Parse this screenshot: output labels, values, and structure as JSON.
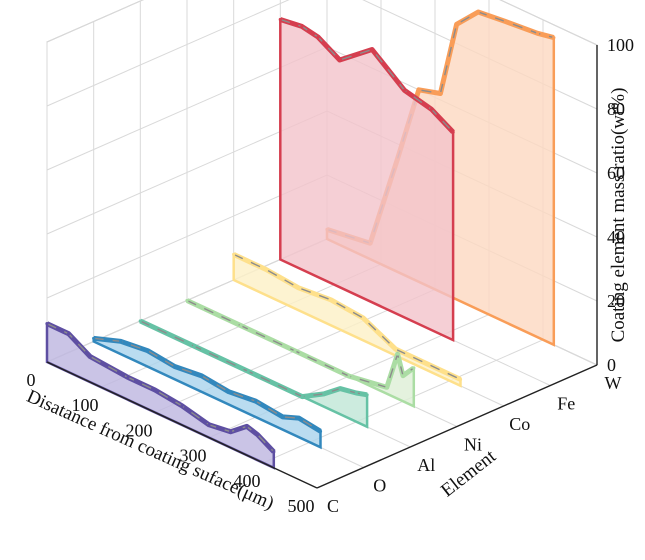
{
  "chart_data": {
    "type": "3d-area",
    "title": "",
    "xlabel": "Disatance from coating suface(μm)",
    "ylabel": "Element",
    "zlabel": "Coating element mass ratio(wt%)",
    "xlim": [
      0,
      500
    ],
    "zlim": [
      0,
      100
    ],
    "x_ticks": [
      "0",
      "100",
      "200",
      "300",
      "400",
      "500"
    ],
    "z_ticks": [
      "0",
      "20",
      "40",
      "60",
      "80",
      "100"
    ],
    "categories": [
      "C",
      "O",
      "Al",
      "Ni",
      "Co",
      "Fe",
      "W"
    ],
    "grid": true,
    "series": [
      {
        "category": "C",
        "color": "#5E4FA2",
        "fill": "#BDB5E0",
        "x": [
          0,
          40,
          80,
          150,
          200,
          250,
          300,
          340,
          370,
          390,
          420
        ],
        "y": [
          12,
          12,
          8,
          7,
          7,
          6,
          4,
          5,
          9,
          8,
          5
        ]
      },
      {
        "category": "O",
        "color": "#3288BD",
        "fill": "#A9D3EC",
        "x": [
          0,
          50,
          100,
          150,
          200,
          250,
          300,
          350,
          380,
          420
        ],
        "y": [
          1,
          4,
          5,
          4,
          5,
          4,
          5,
          4,
          6,
          5
        ]
      },
      {
        "category": "Al",
        "color": "#66C2A5",
        "fill": "#BFE6D6",
        "x": [
          0,
          100,
          200,
          300,
          340,
          370,
          400,
          420
        ],
        "y": [
          0,
          0,
          0,
          0,
          4,
          8,
          9,
          10
        ]
      },
      {
        "category": "Ni",
        "color": "#ABDDA4",
        "fill": "#DDEFD6",
        "x": [
          0,
          100,
          200,
          300,
          370,
          390,
          400,
          420
        ],
        "y": [
          0,
          0,
          0,
          0,
          2,
          14,
          8,
          12
        ]
      },
      {
        "category": "Co",
        "color": "#FEE08B",
        "fill": "#FDF0C6",
        "x": [
          0,
          60,
          120,
          180,
          240,
          300,
          360,
          420
        ],
        "y": [
          8,
          8,
          7,
          8,
          7,
          2,
          2,
          2
        ]
      },
      {
        "category": "Fe",
        "color": "#D53E4F",
        "fill": "#F3C3CB",
        "x": [
          0,
          40,
          70,
          110,
          170,
          230,
          280,
          320
        ],
        "y": [
          75,
          76,
          75,
          71,
          79,
          71,
          69,
          65
        ]
      },
      {
        "category": "W",
        "color": "#F99D58",
        "fill": "#FCD8C0",
        "x": [
          0,
          80,
          130,
          170,
          210,
          240,
          280,
          330,
          390,
          420
        ],
        "y": [
          3,
          5,
          35,
          60,
          62,
          86,
          93,
          94,
          95,
          96
        ]
      }
    ]
  }
}
